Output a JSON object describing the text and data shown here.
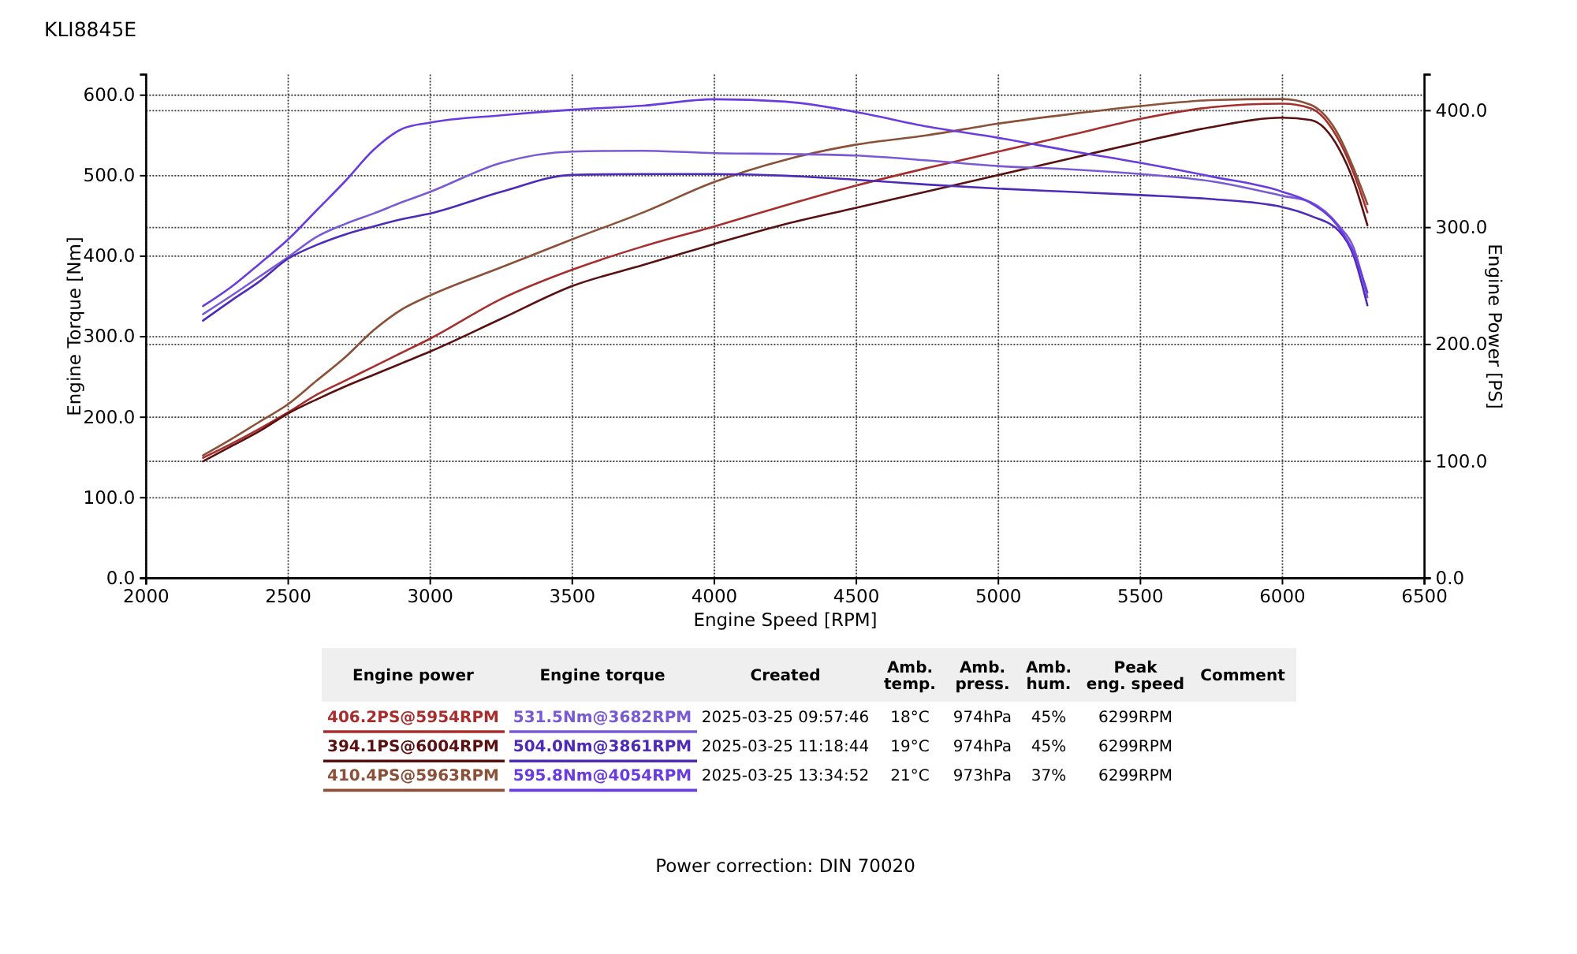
{
  "chart_data": {
    "type": "line",
    "title": "KLI8845E",
    "xlabel": "Engine Speed [RPM]",
    "ylabel": "Engine Torque [Nm]",
    "y2label": "Engine Power [PS]",
    "x": [
      2200,
      2300,
      2400,
      2500,
      2600,
      2700,
      2800,
      2900,
      3000,
      3250,
      3500,
      3750,
      4000,
      4250,
      4500,
      4750,
      5000,
      5250,
      5500,
      5750,
      6000,
      6100,
      6200,
      6250,
      6299
    ],
    "xlim": [
      2000,
      6500
    ],
    "xticks": [
      2000,
      2500,
      3000,
      3500,
      4000,
      4500,
      5000,
      5500,
      6000,
      6500
    ],
    "ylim": [
      0,
      625.6
    ],
    "yticks": [
      {
        "value": 0,
        "label": "0.0"
      },
      {
        "value": 100,
        "label": "100.0"
      },
      {
        "value": 200,
        "label": "200.0"
      },
      {
        "value": 300,
        "label": "300.0"
      },
      {
        "value": 400,
        "label": "400.0"
      },
      {
        "value": 500,
        "label": "500.0"
      },
      {
        "value": 600,
        "label": "600.0"
      }
    ],
    "y2lim": [
      0,
      430.9
    ],
    "y2ticks": [
      {
        "value": 0,
        "label": "0.0"
      },
      {
        "value": 100,
        "label": "100.0"
      },
      {
        "value": 200,
        "label": "200.0"
      },
      {
        "value": 300,
        "label": "300.0"
      },
      {
        "value": 400,
        "label": "400.0"
      }
    ],
    "grid": true,
    "legend": "bottom",
    "series": [
      {
        "name": "406.2PS@5954RPM",
        "color": "#a82e2e",
        "axis": "y2",
        "values": [
          103,
          115,
          128,
          142,
          157,
          169,
          181,
          193,
          205,
          239,
          264,
          284,
          301,
          319,
          336,
          351,
          365,
          379,
          393,
          403,
          406,
          402,
          374,
          347,
          313
        ]
      },
      {
        "name": "394.1PS@6004RPM",
        "color": "#5a1010",
        "axis": "y2",
        "values": [
          100,
          113,
          126,
          141,
          153,
          164,
          174,
          184,
          194,
          222,
          250,
          268,
          286,
          303,
          317,
          331,
          345,
          359,
          373,
          386,
          394,
          392,
          367,
          340,
          302
        ]
      },
      {
        "name": "410.4PS@5963RPM",
        "color": "#8a5038",
        "axis": "y2",
        "values": [
          105,
          119,
          134,
          149,
          169,
          189,
          212,
          230,
          242,
          266,
          290,
          313,
          339,
          358,
          371,
          379,
          389,
          397,
          404,
          409,
          410,
          405,
          378,
          351,
          320
        ]
      },
      {
        "name": "531.5Nm@3682RPM",
        "color": "#7a5ad4",
        "axis": "y",
        "values": [
          328,
          351,
          375,
          399,
          424,
          440,
          453,
          467,
          480,
          516,
          530,
          531,
          528,
          527,
          525,
          519,
          512,
          508,
          502,
          493,
          475,
          467,
          437,
          411,
          349
        ]
      },
      {
        "name": "504.0Nm@3861RPM",
        "color": "#4e2ab8",
        "axis": "y",
        "values": [
          320,
          345,
          369,
          397,
          414,
          427,
          437,
          446,
          453,
          480,
          501,
          502,
          502,
          500,
          495,
          489,
          484,
          480,
          476,
          471,
          461,
          450,
          431,
          401,
          339
        ]
      },
      {
        "name": "595.8Nm@4054RPM",
        "color": "#6a3ce0",
        "axis": "y",
        "values": [
          338,
          362,
          391,
          421,
          457,
          493,
          532,
          558,
          566,
          575,
          582,
          587,
          595,
          592,
          579,
          561,
          547,
          531,
          516,
          499,
          480,
          466,
          435,
          405,
          355
        ]
      }
    ],
    "annotations": [
      "Engine power",
      "Engine torque",
      "Created",
      "Amb.\ntemp.",
      "Amb.\npress.",
      "Amb.\nhum.",
      "Peak\neng. speed",
      "Comment",
      "2025-03-25 09:57:46",
      "18°C",
      "974hPa",
      "45%",
      "6299RPM",
      "2025-03-25 11:18:44",
      "19°C",
      "974hPa",
      "45%",
      "6299RPM",
      "2025-03-25 13:34:52",
      "21°C",
      "973hPa",
      "37%",
      "6299RPM",
      "Power correction: DIN 70020"
    ]
  }
}
